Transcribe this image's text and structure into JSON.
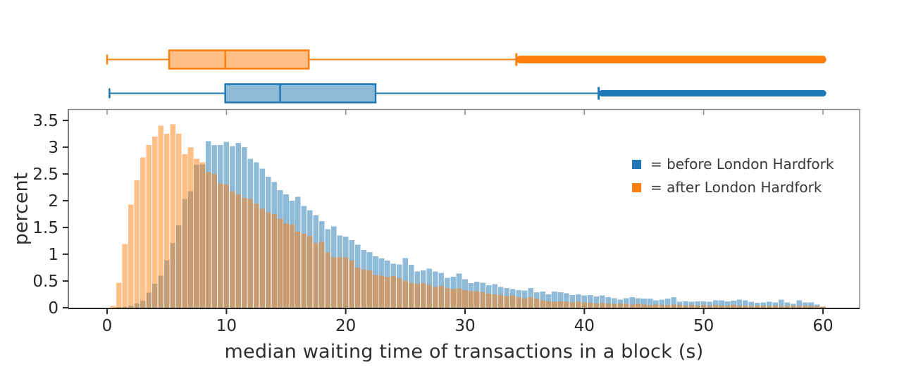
{
  "chart_data": {
    "type": "histogram+boxplot",
    "title": "",
    "xlabel": "median waiting time of transactions in a block (s)",
    "ylabel": "percent",
    "x_range": [
      -3.2,
      63.0
    ],
    "y_range": [
      0,
      3.71
    ],
    "grid": false,
    "legend_position": "inside-upper-right",
    "colors": {
      "before": "#1f77b4",
      "after": "#ff7f0e",
      "text": "#262626",
      "frame_dark": "#262626",
      "frame_mid": "#555555",
      "frame_light": "#8a8a8a"
    },
    "x_ticks": [
      {
        "value": 0,
        "label": "0"
      },
      {
        "value": 10,
        "label": "10"
      },
      {
        "value": 20,
        "label": "20"
      },
      {
        "value": 30,
        "label": "30"
      },
      {
        "value": 40,
        "label": "40"
      },
      {
        "value": 50,
        "label": "50"
      },
      {
        "value": 60,
        "label": "60"
      }
    ],
    "y_ticks": [
      {
        "value": 0,
        "label": "0"
      },
      {
        "value": 0.5,
        "label": "0.5"
      },
      {
        "value": 1,
        "label": "1"
      },
      {
        "value": 1.5,
        "label": "1.5"
      },
      {
        "value": 2,
        "label": "2"
      },
      {
        "value": 2.5,
        "label": "2.5"
      },
      {
        "value": 3,
        "label": "3"
      },
      {
        "value": 3.5,
        "label": "3.5"
      }
    ],
    "hist": {
      "first_center": 0.5,
      "bin_width": 0.5,
      "unit": "percent"
    },
    "series": [
      {
        "id": "before",
        "name": "before London Hardfork",
        "color": "#1f77b4",
        "fill_opacity": 0.5,
        "values": [
          0.0,
          0.01,
          0.02,
          0.04,
          0.08,
          0.13,
          0.28,
          0.45,
          0.6,
          0.89,
          1.21,
          1.54,
          2.03,
          2.18,
          2.67,
          2.68,
          3.11,
          3.04,
          3.04,
          3.1,
          3.02,
          3.08,
          3.0,
          2.78,
          2.72,
          2.6,
          2.45,
          2.35,
          2.2,
          2.12,
          2.0,
          2.07,
          1.9,
          1.82,
          1.73,
          1.62,
          1.47,
          1.52,
          1.35,
          1.33,
          1.26,
          1.18,
          1.08,
          1.04,
          0.96,
          0.92,
          0.88,
          0.82,
          0.81,
          0.93,
          0.8,
          0.68,
          0.7,
          0.73,
          0.68,
          0.65,
          0.56,
          0.58,
          0.64,
          0.53,
          0.46,
          0.49,
          0.47,
          0.42,
          0.44,
          0.39,
          0.37,
          0.35,
          0.33,
          0.32,
          0.37,
          0.29,
          0.3,
          0.25,
          0.3,
          0.29,
          0.27,
          0.24,
          0.25,
          0.23,
          0.24,
          0.21,
          0.23,
          0.2,
          0.18,
          0.15,
          0.18,
          0.2,
          0.18,
          0.17,
          0.17,
          0.14,
          0.15,
          0.17,
          0.2,
          0.11,
          0.12,
          0.11,
          0.12,
          0.12,
          0.11,
          0.14,
          0.14,
          0.12,
          0.13,
          0.15,
          0.14,
          0.11,
          0.09,
          0.1,
          0.11,
          0.1,
          0.15,
          0.1,
          0.07,
          0.14,
          0.1,
          0.1,
          0.06,
          0.02
        ]
      },
      {
        "id": "after",
        "name": "after London Hardfork",
        "color": "#ff7f0e",
        "fill_opacity": 0.5,
        "values": [
          0.03,
          0.47,
          1.19,
          1.93,
          2.38,
          2.81,
          3.04,
          3.2,
          3.4,
          3.25,
          3.43,
          3.25,
          2.87,
          3.0,
          2.78,
          2.72,
          2.53,
          2.5,
          2.32,
          2.3,
          2.18,
          2.12,
          2.05,
          2.03,
          1.95,
          1.85,
          1.78,
          1.75,
          1.66,
          1.58,
          1.55,
          1.42,
          1.38,
          1.34,
          1.21,
          1.23,
          1.03,
          0.94,
          0.95,
          0.94,
          0.88,
          0.75,
          0.72,
          0.7,
          0.61,
          0.6,
          0.57,
          0.59,
          0.55,
          0.5,
          0.47,
          0.45,
          0.46,
          0.43,
          0.39,
          0.41,
          0.37,
          0.35,
          0.36,
          0.33,
          0.31,
          0.31,
          0.29,
          0.26,
          0.25,
          0.24,
          0.22,
          0.23,
          0.2,
          0.18,
          0.2,
          0.17,
          0.14,
          0.12,
          0.11,
          0.12,
          0.11,
          0.1,
          0.11,
          0.1,
          0.09,
          0.08,
          0.09,
          0.08,
          0.07,
          0.08,
          0.07,
          0.06,
          0.07,
          0.06,
          0.05,
          0.06,
          0.05,
          0.05,
          0.06,
          0.05,
          0.04,
          0.05,
          0.04,
          0.05,
          0.04,
          0.05,
          0.04,
          0.04,
          0.05,
          0.04,
          0.04,
          0.03,
          0.04,
          0.04,
          0.03,
          0.04,
          0.03,
          0.03,
          0.04,
          0.03,
          0.04,
          0.03,
          0.03,
          0.02
        ]
      }
    ],
    "boxplots": [
      {
        "id": "after",
        "row": "top",
        "whisker_low": 0.0,
        "q1": 5.2,
        "median": 9.9,
        "q3": 16.9,
        "whisker_high": 34.3,
        "outliers_to": 60.1
      },
      {
        "id": "before",
        "row": "bottom",
        "whisker_low": 0.2,
        "q1": 9.9,
        "median": 14.5,
        "q3": 22.5,
        "whisker_high": 41.2,
        "outliers_to": 60.1
      }
    ],
    "legend": [
      {
        "id": "before",
        "label": "= before London Hardfork",
        "color": "#1f77b4"
      },
      {
        "id": "after",
        "label": "= after London Hardfork",
        "color": "#ff7f0e"
      }
    ]
  }
}
